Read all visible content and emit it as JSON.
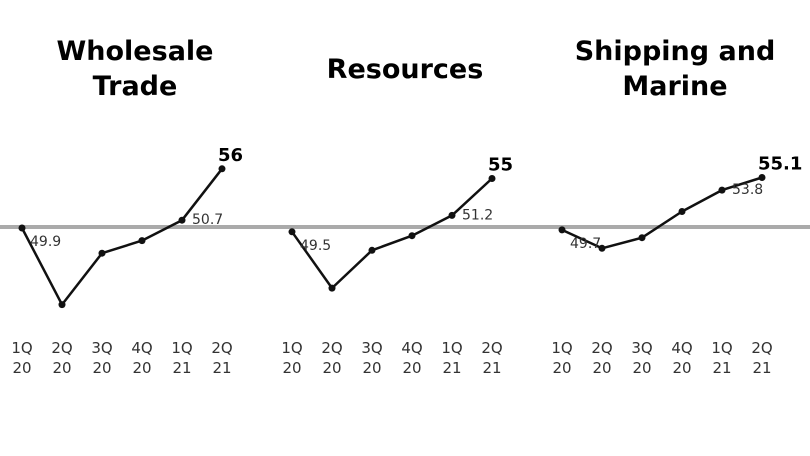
{
  "chart_data": [
    {
      "type": "line",
      "title": "Wholesale\nTrade",
      "categories": [
        "1Q 20",
        "2Q 20",
        "3Q 20",
        "4Q 20",
        "1Q 21",
        "2Q 21"
      ],
      "tick_top": [
        "1Q",
        "2Q",
        "3Q",
        "4Q",
        "1Q",
        "2Q"
      ],
      "tick_bottom": [
        "20",
        "20",
        "20",
        "20",
        "21",
        "21"
      ],
      "values": [
        49.9,
        42.0,
        47.3,
        48.6,
        50.7,
        56
      ],
      "reference_line": 50,
      "data_labels": [
        {
          "index": 0,
          "text": "49.9"
        },
        {
          "index": 4,
          "text": "50.7"
        },
        {
          "index": 5,
          "text": "56",
          "bold": true
        }
      ],
      "colors": {
        "line": "#111111",
        "reference": "#aaaaaa"
      }
    },
    {
      "type": "line",
      "title": "Resources",
      "categories": [
        "1Q 20",
        "2Q 20",
        "3Q 20",
        "4Q 20",
        "1Q 21",
        "2Q 21"
      ],
      "tick_top": [
        "1Q",
        "2Q",
        "3Q",
        "4Q",
        "1Q",
        "2Q"
      ],
      "tick_bottom": [
        "20",
        "20",
        "20",
        "20",
        "21",
        "21"
      ],
      "values": [
        49.5,
        43.7,
        47.6,
        49.1,
        51.2,
        55
      ],
      "reference_line": 50,
      "data_labels": [
        {
          "index": 0,
          "text": "49.5"
        },
        {
          "index": 4,
          "text": "51.2"
        },
        {
          "index": 5,
          "text": "55",
          "bold": true
        }
      ],
      "colors": {
        "line": "#111111",
        "reference": "#aaaaaa"
      }
    },
    {
      "type": "line",
      "title": "Shipping and\nMarine",
      "categories": [
        "1Q 20",
        "2Q 20",
        "3Q 20",
        "4Q 20",
        "1Q 21",
        "2Q 21"
      ],
      "tick_top": [
        "1Q",
        "2Q",
        "3Q",
        "4Q",
        "1Q",
        "2Q"
      ],
      "tick_bottom": [
        "20",
        "20",
        "20",
        "20",
        "21",
        "21"
      ],
      "values": [
        49.7,
        47.8,
        48.9,
        51.6,
        53.8,
        55.1
      ],
      "reference_line": 50,
      "data_labels": [
        {
          "index": 0,
          "text": "49.7"
        },
        {
          "index": 4,
          "text": "53.8"
        },
        {
          "index": 5,
          "text": "55.1",
          "bold": true
        }
      ],
      "colors": {
        "line": "#111111",
        "reference": "#aaaaaa"
      }
    }
  ]
}
